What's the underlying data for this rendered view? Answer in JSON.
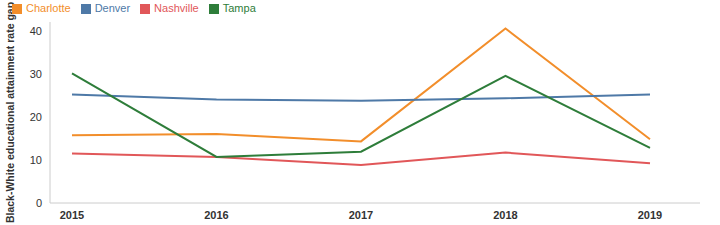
{
  "chart_data": {
    "type": "line",
    "y_label": "Black-White educational attainment rate gap",
    "categories": [
      "2015",
      "2016",
      "2017",
      "2018",
      "2019"
    ],
    "series": [
      {
        "name": "Charlotte",
        "color": "#f28e2b",
        "values": [
          15.7,
          16.0,
          14.3,
          40.5,
          14.8
        ]
      },
      {
        "name": "Denver",
        "color": "#4e79a7",
        "values": [
          25.2,
          24.0,
          23.7,
          24.3,
          25.2
        ]
      },
      {
        "name": "Nashville",
        "color": "#e15759",
        "values": [
          11.5,
          10.7,
          8.8,
          11.7,
          9.2
        ]
      },
      {
        "name": "Tampa",
        "color": "#2e7d3a",
        "values": [
          30.1,
          10.7,
          11.9,
          29.5,
          12.8
        ]
      }
    ],
    "ylim": [
      0,
      42
    ],
    "yticks": [
      0,
      10,
      20,
      30,
      40
    ],
    "grid": false,
    "legend": "top-left"
  }
}
